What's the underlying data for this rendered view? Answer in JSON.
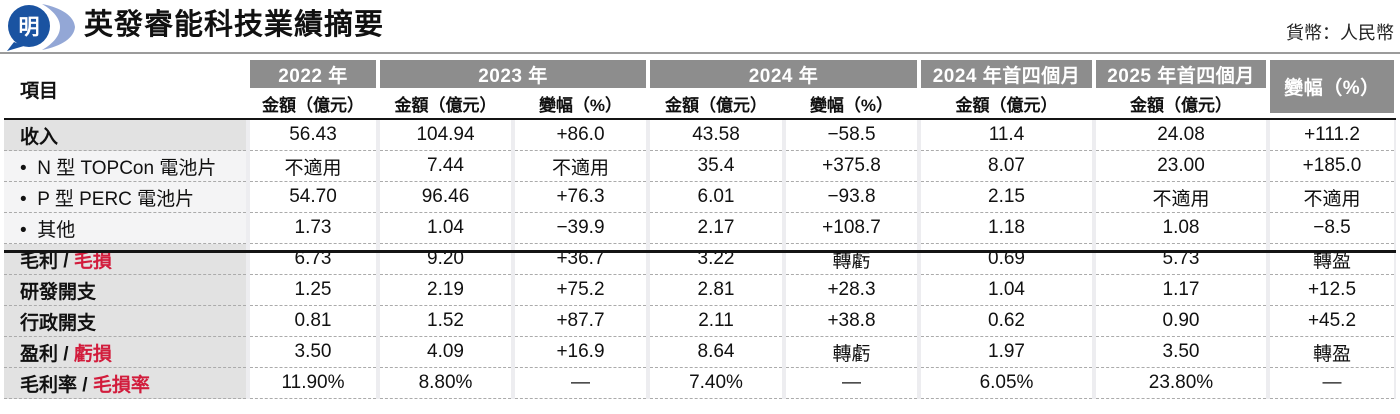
{
  "header": {
    "logo_glyph": "明",
    "title": "英發睿能科技業績摘要",
    "currency_note": "貨幣：人民幣"
  },
  "colors": {
    "accent_red": "#d21c3c",
    "band_gray": "#8d8d8d",
    "label_bg_major": "#e2e2e2",
    "label_bg_sub": "#f4f4f5",
    "logo_dark_blue": "#1a53a1",
    "logo_light_blue": "#93a7d6"
  },
  "table": {
    "item_header": "項目",
    "col_groups": [
      {
        "label": "2022 年",
        "subs": [
          "金額（億元）"
        ]
      },
      {
        "label": "2023 年",
        "subs": [
          "金額（億元）",
          "變幅（%）"
        ]
      },
      {
        "label": "2024 年",
        "subs": [
          "金額（億元）",
          "變幅（%）"
        ]
      },
      {
        "label": "2024 年首四個月",
        "subs": [
          "金額（億元）"
        ]
      },
      {
        "label": "2025 年首四個月",
        "subs": [
          "金額（億元）"
        ]
      },
      {
        "label": "變幅（%）",
        "subs": []
      }
    ],
    "rows": [
      {
        "type": "major",
        "label_parts": [
          {
            "text": "收入",
            "red": false
          }
        ],
        "cells": [
          {
            "text": "56.43"
          },
          {
            "text": "104.94"
          },
          {
            "text": "+86.0"
          },
          {
            "text": "43.58"
          },
          {
            "text": "−58.5"
          },
          {
            "text": "11.4"
          },
          {
            "text": "24.08"
          },
          {
            "text": "+111.2"
          }
        ]
      },
      {
        "type": "sub",
        "label_parts": [
          {
            "text": "•  N 型 TOPCon 電池片",
            "red": false
          }
        ],
        "cells": [
          {
            "text": "不適用"
          },
          {
            "text": "7.44"
          },
          {
            "text": "不適用"
          },
          {
            "text": "35.4"
          },
          {
            "text": "+375.8"
          },
          {
            "text": "8.07"
          },
          {
            "text": "23.00"
          },
          {
            "text": "+185.0"
          }
        ]
      },
      {
        "type": "sub",
        "label_parts": [
          {
            "text": "•  P 型 PERC 電池片",
            "red": false
          }
        ],
        "cells": [
          {
            "text": "54.70"
          },
          {
            "text": "96.46"
          },
          {
            "text": "+76.3"
          },
          {
            "text": "6.01"
          },
          {
            "text": "−93.8"
          },
          {
            "text": "2.15"
          },
          {
            "text": "不適用"
          },
          {
            "text": "不適用"
          }
        ]
      },
      {
        "type": "sub",
        "label_parts": [
          {
            "text": "•  其他",
            "red": false
          }
        ],
        "cells": [
          {
            "text": "1.73"
          },
          {
            "text": "1.04"
          },
          {
            "text": "−39.9"
          },
          {
            "text": "2.17"
          },
          {
            "text": "+108.7"
          },
          {
            "text": "1.18"
          },
          {
            "text": "1.08"
          },
          {
            "text": "−8.5"
          }
        ]
      },
      {
        "type": "major",
        "label_parts": [
          {
            "text": "毛利 / ",
            "red": false
          },
          {
            "text": "毛損",
            "red": true
          }
        ],
        "cells": [
          {
            "text": "6.73"
          },
          {
            "text": "9.20"
          },
          {
            "text": "+36.7"
          },
          {
            "text": "3.22",
            "red": true
          },
          {
            "text": "轉虧"
          },
          {
            "text": "0.69",
            "red": true
          },
          {
            "text": "5.73"
          },
          {
            "text": "轉盈"
          }
        ]
      },
      {
        "type": "major",
        "label_parts": [
          {
            "text": "研發開支",
            "red": false
          }
        ],
        "cells": [
          {
            "text": "1.25",
            "red": true
          },
          {
            "text": "2.19",
            "red": true
          },
          {
            "text": "+75.2"
          },
          {
            "text": "2.81",
            "red": true
          },
          {
            "text": "+28.3"
          },
          {
            "text": "1.04",
            "red": true
          },
          {
            "text": "1.17",
            "red": true
          },
          {
            "text": "+12.5"
          }
        ]
      },
      {
        "type": "major",
        "label_parts": [
          {
            "text": "行政開支",
            "red": false
          }
        ],
        "cells": [
          {
            "text": "0.81",
            "red": true
          },
          {
            "text": "1.52",
            "red": true
          },
          {
            "text": "+87.7"
          },
          {
            "text": "2.11",
            "red": true
          },
          {
            "text": "+38.8"
          },
          {
            "text": "0.62",
            "red": true
          },
          {
            "text": "0.90",
            "red": true
          },
          {
            "text": "+45.2"
          }
        ]
      },
      {
        "type": "major",
        "label_parts": [
          {
            "text": "盈利 / ",
            "red": false
          },
          {
            "text": "虧損",
            "red": true
          }
        ],
        "cells": [
          {
            "text": "3.50"
          },
          {
            "text": "4.09"
          },
          {
            "text": "+16.9"
          },
          {
            "text": "8.64",
            "red": true
          },
          {
            "text": "轉虧"
          },
          {
            "text": "1.97",
            "red": true
          },
          {
            "text": "3.50"
          },
          {
            "text": "轉盈"
          }
        ]
      },
      {
        "type": "major",
        "label_parts": [
          {
            "text": "毛利率 / ",
            "red": false
          },
          {
            "text": "毛損率",
            "red": true
          }
        ],
        "cells": [
          {
            "text": "11.90%"
          },
          {
            "text": "8.80%"
          },
          {
            "text": "—"
          },
          {
            "text": "7.40%",
            "red": true
          },
          {
            "text": "—"
          },
          {
            "text": "6.05%",
            "red": true
          },
          {
            "text": "23.80%"
          },
          {
            "text": "—"
          }
        ]
      }
    ]
  }
}
